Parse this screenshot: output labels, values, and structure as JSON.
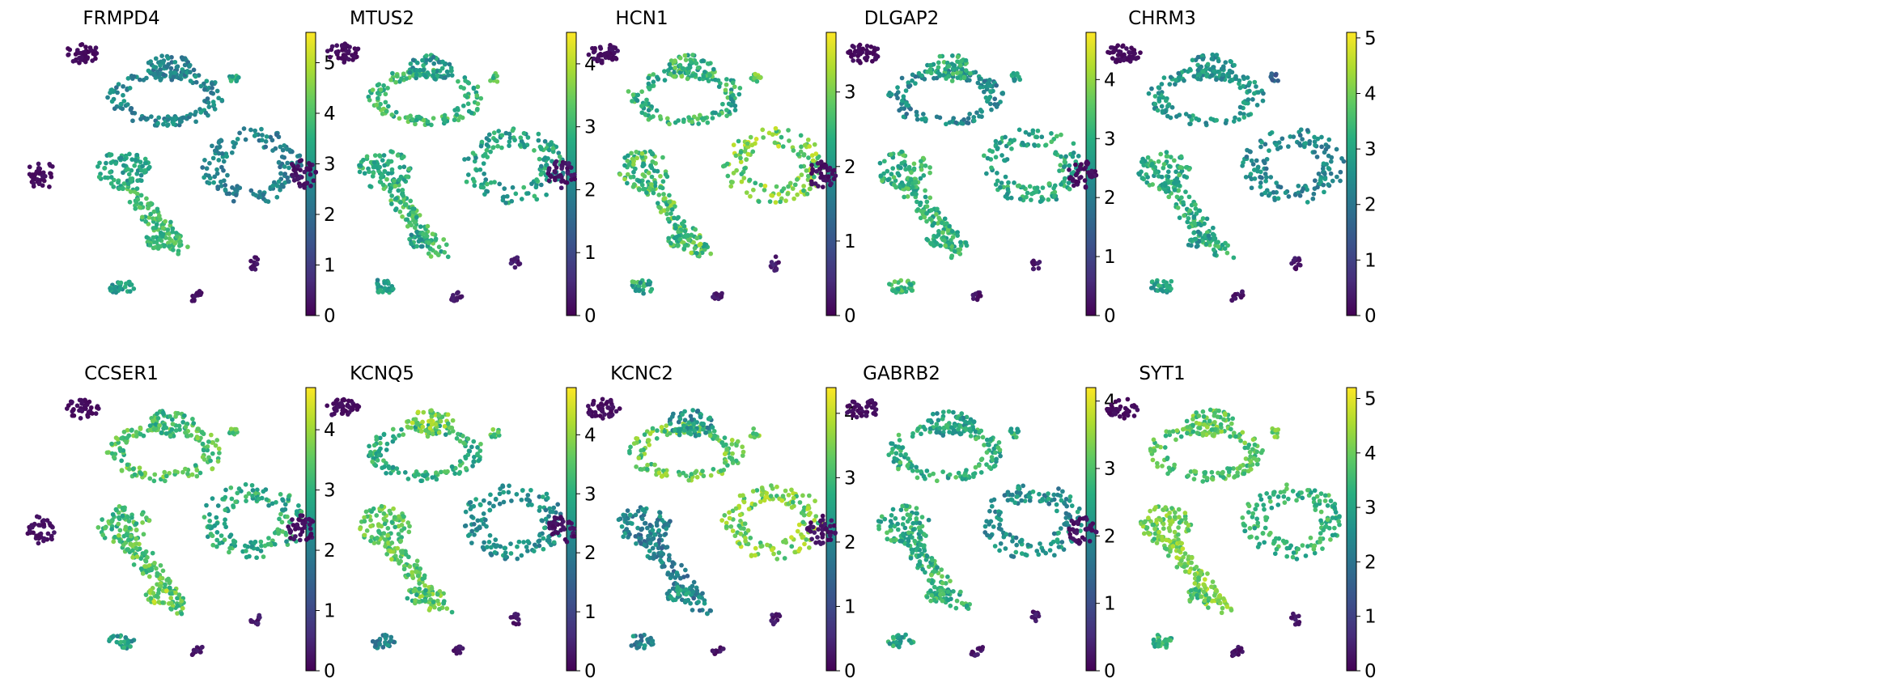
{
  "figure_title": "UMAP gene expression panels",
  "chart_data": [
    {
      "type": "scatter",
      "title": "FRMPD4",
      "colorbar": {
        "min": 0,
        "max": 5.6,
        "ticks": [
          0,
          1,
          2,
          3,
          4,
          5
        ],
        "colormap": "viridis"
      },
      "cluster_levels": [
        0.15,
        2.6,
        2.5,
        2.5,
        0.2,
        3.2,
        3.8,
        0.25,
        0.3,
        3.1,
        3.6,
        3.3
      ]
    },
    {
      "type": "scatter",
      "title": "MTUS2",
      "colorbar": {
        "min": 0,
        "max": 4.5,
        "ticks": [
          0,
          1,
          2,
          3,
          4
        ],
        "colormap": "viridis"
      },
      "cluster_levels": [
        0.15,
        3.0,
        2.4,
        2.6,
        0.2,
        2.8,
        3.0,
        0.25,
        0.3,
        2.5,
        2.6,
        3.2
      ]
    },
    {
      "type": "scatter",
      "title": "HCN1",
      "colorbar": {
        "min": 0,
        "max": 3.8,
        "ticks": [
          0,
          1,
          2,
          3
        ],
        "colormap": "viridis"
      },
      "cluster_levels": [
        0.15,
        2.4,
        2.5,
        3.0,
        0.2,
        2.6,
        2.7,
        0.25,
        0.3,
        2.3,
        2.6,
        2.9
      ]
    },
    {
      "type": "scatter",
      "title": "DLGAP2",
      "colorbar": {
        "min": 0,
        "max": 4.8,
        "ticks": [
          0,
          1,
          2,
          3,
          4
        ],
        "colormap": "viridis"
      },
      "cluster_levels": [
        0.15,
        2.2,
        3.0,
        2.9,
        0.2,
        3.1,
        3.1,
        0.25,
        0.3,
        3.2,
        3.3,
        2.8
      ]
    },
    {
      "type": "scatter",
      "title": "CHRM3",
      "colorbar": {
        "min": 0,
        "max": 5.1,
        "ticks": [
          0,
          1,
          2,
          3,
          4,
          5
        ],
        "colormap": "viridis"
      },
      "cluster_levels": [
        0.15,
        2.7,
        2.6,
        2.4,
        0.2,
        3.2,
        3.2,
        0.25,
        0.3,
        2.9,
        2.7,
        1.7
      ]
    },
    {
      "type": "scatter",
      "title": "CCSER1",
      "colorbar": {
        "min": 0,
        "max": 4.7,
        "ticks": [
          0,
          1,
          2,
          3,
          4
        ],
        "colormap": "viridis"
      },
      "cluster_levels": [
        0.15,
        3.4,
        3.1,
        2.9,
        0.2,
        3.2,
        3.4,
        0.25,
        0.3,
        2.6,
        3.8,
        3.3
      ]
    },
    {
      "type": "scatter",
      "title": "KCNQ5",
      "colorbar": {
        "min": 0,
        "max": 4.8,
        "ticks": [
          0,
          1,
          2,
          3,
          4
        ],
        "colormap": "viridis"
      },
      "cluster_levels": [
        0.15,
        3.0,
        3.8,
        2.4,
        0.2,
        3.5,
        3.6,
        0.25,
        0.3,
        2.2,
        3.3,
        3.5
      ]
    },
    {
      "type": "scatter",
      "title": "KCNC2",
      "colorbar": {
        "min": 0,
        "max": 4.4,
        "ticks": [
          0,
          1,
          2,
          3,
          4
        ],
        "colormap": "viridis"
      },
      "cluster_levels": [
        0.15,
        3.3,
        2.2,
        3.5,
        0.2,
        2.0,
        1.9,
        0.25,
        0.3,
        2.0,
        2.3,
        3.4
      ]
    },
    {
      "type": "scatter",
      "title": "GABRB2",
      "colorbar": {
        "min": 0,
        "max": 4.2,
        "ticks": [
          0,
          1,
          2,
          3,
          4
        ],
        "colormap": "viridis"
      },
      "cluster_levels": [
        0.15,
        2.6,
        2.4,
        2.1,
        0.2,
        2.6,
        2.7,
        0.25,
        0.3,
        2.5,
        2.6,
        2.8
      ]
    },
    {
      "type": "scatter",
      "title": "SYT1",
      "colorbar": {
        "min": 0,
        "max": 5.2,
        "ticks": [
          0,
          1,
          2,
          3,
          4,
          5
        ],
        "colormap": "viridis"
      },
      "cluster_levels": [
        0.15,
        3.8,
        3.9,
        3.4,
        0.2,
        4.0,
        4.2,
        0.25,
        0.3,
        3.3,
        3.6,
        3.9
      ]
    }
  ]
}
